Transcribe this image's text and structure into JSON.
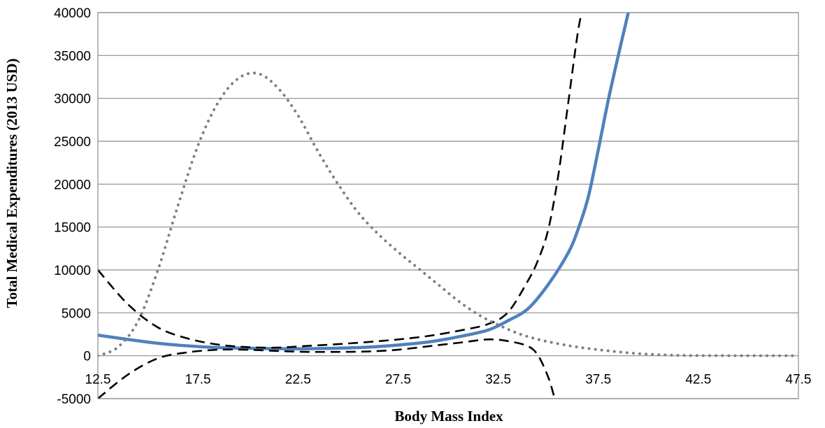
{
  "chart_data": {
    "type": "line",
    "xlabel": "Body Mass Index",
    "ylabel": "Total Medical Expenditures (2013 USD)",
    "xlim": [
      12.5,
      47.5
    ],
    "ylim": [
      -5000,
      40000
    ],
    "x_tick_labels": [
      "12.5",
      "17.5",
      "22.5",
      "27.5",
      "32.5",
      "37.5",
      "42.5",
      "47.5"
    ],
    "y_tick_labels": [
      "-5000",
      "0",
      "5000",
      "10000",
      "15000",
      "20000",
      "25000",
      "30000",
      "35000",
      "40000"
    ],
    "grid": "horizontal",
    "legend": "none",
    "series": [
      {
        "style": "solid",
        "color": "#4f81bd",
        "x": [
          12.5,
          14,
          15.5,
          17,
          18.5,
          20,
          21.5,
          23,
          24.5,
          26,
          27.5,
          29,
          30.5,
          32,
          33,
          34,
          35,
          36,
          36.5,
          37,
          37.5,
          38,
          38.5,
          39,
          39.2
        ],
        "y": [
          2400,
          1900,
          1450,
          1150,
          950,
          870,
          820,
          820,
          880,
          1000,
          1250,
          1600,
          2200,
          3000,
          4100,
          5500,
          8300,
          12000,
          14800,
          18500,
          24000,
          29800,
          35000,
          40000,
          42000
        ]
      },
      {
        "style": "dashed",
        "color": "#000000",
        "x": [
          12.5,
          14,
          15.5,
          17,
          18.5,
          20,
          21.5,
          23,
          24.5,
          26,
          27.5,
          29,
          30.5,
          32,
          33,
          34,
          34.5,
          35,
          35.5,
          36,
          36.5,
          36.8
        ],
        "y": [
          10000,
          6000,
          3300,
          2000,
          1300,
          1000,
          950,
          1150,
          1350,
          1600,
          1900,
          2300,
          2900,
          3700,
          5100,
          8800,
          11200,
          14700,
          21000,
          29500,
          38000,
          41000
        ]
      },
      {
        "style": "dashed",
        "color": "#000000",
        "x": [
          12.5,
          14,
          15.5,
          17,
          18.5,
          20,
          21.5,
          23,
          24.5,
          26,
          27.5,
          29,
          30.5,
          32,
          33,
          34,
          34.5,
          35,
          35.3
        ],
        "y": [
          -5000,
          -2200,
          -300,
          400,
          700,
          700,
          550,
          450,
          450,
          500,
          700,
          1100,
          1500,
          1900,
          1700,
          1100,
          0,
          -2500,
          -4800
        ]
      },
      {
        "style": "dotted",
        "color": "#7f7f7f",
        "x": [
          12.5,
          13.5,
          14.5,
          15.5,
          16.5,
          17.5,
          18.5,
          19.5,
          20.5,
          21.5,
          22.5,
          23.5,
          24.5,
          25.5,
          26.5,
          27.5,
          28.5,
          29.5,
          30.5,
          31.5,
          32.5,
          33.5,
          34.5,
          35.5,
          36.5,
          37.5,
          38.5,
          39.5,
          40.5,
          41.5,
          42.5,
          43.5,
          44.5,
          45.5,
          46.5,
          47.5
        ],
        "y": [
          0,
          1000,
          4000,
          10000,
          17500,
          24500,
          29500,
          32300,
          32900,
          31200,
          28000,
          23800,
          20000,
          16700,
          14200,
          12100,
          10200,
          8300,
          6400,
          4800,
          3600,
          2600,
          1900,
          1400,
          1000,
          700,
          450,
          250,
          120,
          50,
          20,
          10,
          5,
          0,
          0,
          0
        ]
      }
    ]
  }
}
